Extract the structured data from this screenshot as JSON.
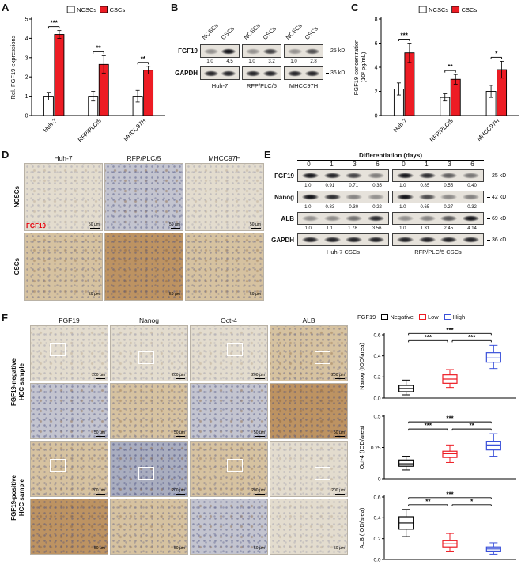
{
  "colors": {
    "csc": "#ed1c24",
    "ncsc": "#ffffff",
    "negative": "#000000",
    "low": "#ed1c24",
    "high": "#3a50d9",
    "stain_label": "#e8000b",
    "band": "#17171c"
  },
  "panelA": {
    "label": "A"
  },
  "panelB": {
    "label": "B",
    "lane_labels": [
      "NCSCs",
      "CSCs"
    ],
    "groups": [
      {
        "name": "Huh-7",
        "quant": [
          "1.0",
          "4.5"
        ]
      },
      {
        "name": "RFP/PLC/5",
        "quant": [
          "1.0",
          "3.2"
        ]
      },
      {
        "name": "MHCC97H",
        "quant": [
          "1.0",
          "2.8"
        ]
      }
    ],
    "rows": [
      {
        "protein": "FGF19",
        "kd": "25 kD"
      },
      {
        "protein": "GAPDH",
        "kd": "36 kD"
      }
    ]
  },
  "panelC": {
    "label": "C"
  },
  "panelD": {
    "label": "D",
    "columns": [
      "Huh-7",
      "RFP/PLC/5",
      "MHCC97H"
    ],
    "rows": [
      "NCSCs",
      "CSCs"
    ],
    "stain_label": "FGF19",
    "scalebar": "50 µm",
    "tones": [
      [
        "pale",
        "blue",
        "pale"
      ],
      [
        "tan",
        "brown",
        "tan"
      ]
    ]
  },
  "panelE": {
    "label": "E",
    "header": "Differentiation (days)",
    "lanes": [
      "0",
      "1",
      "3",
      "6"
    ],
    "groups": [
      "Huh-7 CSCs",
      "RFP/PLC/5 CSCs"
    ],
    "rows": [
      {
        "protein": "FGF19",
        "kd": "25 kD",
        "quant": [
          [
            "1.0",
            "0.91",
            "0.71",
            "0.35"
          ],
          [
            "1.0",
            "0.85",
            "0.55",
            "0.40"
          ]
        ]
      },
      {
        "protein": "Nanog",
        "kd": "42 kD",
        "quant": [
          [
            "1.0",
            "0.83",
            "0.30",
            "0.22"
          ],
          [
            "1.0",
            "0.65",
            "0.27",
            "0.32"
          ]
        ]
      },
      {
        "protein": "ALB",
        "kd": "69 kD",
        "quant": [
          [
            "1.0",
            "1.1",
            "1.78",
            "3.56"
          ],
          [
            "1.0",
            "1.31",
            "2.45",
            "4.14"
          ]
        ]
      },
      {
        "protein": "GAPDH",
        "kd": "36 kD",
        "quant": null
      }
    ]
  },
  "panelF": {
    "label": "F",
    "columns": [
      "FGF19",
      "Nanog",
      "Oct-4",
      "ALB"
    ],
    "row_groups": [
      [
        "FGF19-negative",
        "HCC sample"
      ],
      [
        "FGF19-positive",
        "HCC sample"
      ]
    ],
    "scalebars": [
      "200 µm",
      "50 µm",
      "200 µm",
      "50 µm"
    ],
    "insets": [
      true,
      false,
      true,
      false
    ],
    "tones": [
      [
        "pale",
        "pale",
        "pale",
        "tan"
      ],
      [
        "blue",
        "tan",
        "blue",
        "brown"
      ],
      [
        "tan",
        "bluedark",
        "tan",
        "pale"
      ],
      [
        "brown",
        "tan",
        "blue",
        "pale"
      ]
    ],
    "legend": {
      "title": "FGF19",
      "items": [
        {
          "label": "Negative",
          "color": "#000000"
        },
        {
          "label": "Low",
          "color": "#ed1c24"
        },
        {
          "label": "High",
          "color": "#3a50d9"
        }
      ]
    }
  },
  "chart_data": [
    {
      "id": "A",
      "type": "bar",
      "ylabel": [
        "Rel. FGF19 expressions"
      ],
      "ylim": [
        0,
        5
      ],
      "yticks": [
        0,
        1,
        2,
        3,
        4,
        5
      ],
      "ytick_labels": [
        "0",
        "1",
        "2",
        "3",
        "4",
        "5"
      ],
      "categories": [
        "Huh-7",
        "RFP/PLC/5",
        "MHCC97H"
      ],
      "series": [
        {
          "name": "NCSCs",
          "color": "#ffffff",
          "values": [
            1.0,
            1.0,
            1.0
          ],
          "errors": [
            0.2,
            0.25,
            0.3
          ]
        },
        {
          "name": "CSCs",
          "color": "#ed1c24",
          "values": [
            4.2,
            2.65,
            2.35
          ],
          "errors": [
            0.2,
            0.45,
            0.2
          ]
        }
      ],
      "significance": [
        "***",
        "**",
        "**"
      ],
      "legend_position": "top"
    },
    {
      "id": "C",
      "type": "bar",
      "ylabel": [
        "FGF19 concentration",
        "(10² pg/mL)"
      ],
      "ylim": [
        0,
        8
      ],
      "yticks": [
        0,
        2,
        4,
        6,
        8
      ],
      "ytick_labels": [
        "0",
        "2",
        "4",
        "6",
        "8"
      ],
      "categories": [
        "Huh-7",
        "RFP/PLC/5",
        "MHCC97H"
      ],
      "series": [
        {
          "name": "NCSCs",
          "color": "#ffffff",
          "values": [
            2.2,
            1.5,
            2.0
          ],
          "errors": [
            0.5,
            0.3,
            0.5
          ]
        },
        {
          "name": "CSCs",
          "color": "#ed1c24",
          "values": [
            5.2,
            3.0,
            3.8
          ],
          "errors": [
            0.8,
            0.4,
            0.7
          ]
        }
      ],
      "significance": [
        "***",
        "**",
        "*"
      ],
      "legend_position": "top"
    },
    {
      "id": "F-Nanog",
      "type": "box",
      "ylabel": "Nanog (IOD/area)",
      "ylim": [
        0,
        0.6
      ],
      "yticks": [
        0,
        0.2,
        0.4,
        0.6
      ],
      "ytick_labels": [
        "0.0",
        "0.2",
        "0.4",
        "0.6"
      ],
      "groups": [
        "Negative",
        "Low",
        "High"
      ],
      "boxes": [
        {
          "whislo": 0.03,
          "q1": 0.06,
          "med": 0.09,
          "q3": 0.12,
          "whishi": 0.17
        },
        {
          "whislo": 0.1,
          "q1": 0.14,
          "med": 0.18,
          "q3": 0.22,
          "whishi": 0.27
        },
        {
          "whislo": 0.28,
          "q1": 0.34,
          "med": 0.38,
          "q3": 0.43,
          "whishi": 0.5
        }
      ],
      "significance": [
        {
          "pair": [
            0,
            1
          ],
          "label": "***",
          "level": 0
        },
        {
          "pair": [
            1,
            2
          ],
          "label": "***",
          "level": 0
        },
        {
          "pair": [
            0,
            2
          ],
          "label": "***",
          "level": 1
        }
      ]
    },
    {
      "id": "F-Oct4",
      "type": "box",
      "ylabel": "Oct-4 (IOD/area)",
      "ylim": [
        0,
        0.5
      ],
      "yticks": [
        0,
        0.25,
        0.5
      ],
      "ytick_labels": [
        "0",
        "0.25",
        "0.5"
      ],
      "groups": [
        "Negative",
        "Low",
        "High"
      ],
      "boxes": [
        {
          "whislo": 0.07,
          "q1": 0.1,
          "med": 0.12,
          "q3": 0.15,
          "whishi": 0.18
        },
        {
          "whislo": 0.13,
          "q1": 0.17,
          "med": 0.2,
          "q3": 0.22,
          "whishi": 0.27
        },
        {
          "whislo": 0.18,
          "q1": 0.23,
          "med": 0.27,
          "q3": 0.3,
          "whishi": 0.36
        }
      ],
      "significance": [
        {
          "pair": [
            0,
            1
          ],
          "label": "***",
          "level": 0
        },
        {
          "pair": [
            1,
            2
          ],
          "label": "**",
          "level": 0
        },
        {
          "pair": [
            0,
            2
          ],
          "label": "***",
          "level": 1
        }
      ]
    },
    {
      "id": "F-ALB",
      "type": "box",
      "ylabel": "ALB (IOD/area)",
      "ylim": [
        0,
        0.6
      ],
      "yticks": [
        0,
        0.2,
        0.4,
        0.6
      ],
      "ytick_labels": [
        "0.0",
        "0.2",
        "0.4",
        "0.6"
      ],
      "groups": [
        "Negative",
        "Low",
        "High"
      ],
      "boxes": [
        {
          "whislo": 0.22,
          "q1": 0.29,
          "med": 0.35,
          "q3": 0.41,
          "whishi": 0.48
        },
        {
          "whislo": 0.08,
          "q1": 0.12,
          "med": 0.15,
          "q3": 0.18,
          "whishi": 0.25
        },
        {
          "whislo": 0.05,
          "q1": 0.08,
          "med": 0.1,
          "q3": 0.12,
          "whishi": 0.16
        }
      ],
      "significance": [
        {
          "pair": [
            0,
            1
          ],
          "label": "**",
          "level": 0
        },
        {
          "pair": [
            1,
            2
          ],
          "label": "*",
          "level": 0
        },
        {
          "pair": [
            0,
            2
          ],
          "label": "***",
          "level": 1
        }
      ]
    }
  ]
}
